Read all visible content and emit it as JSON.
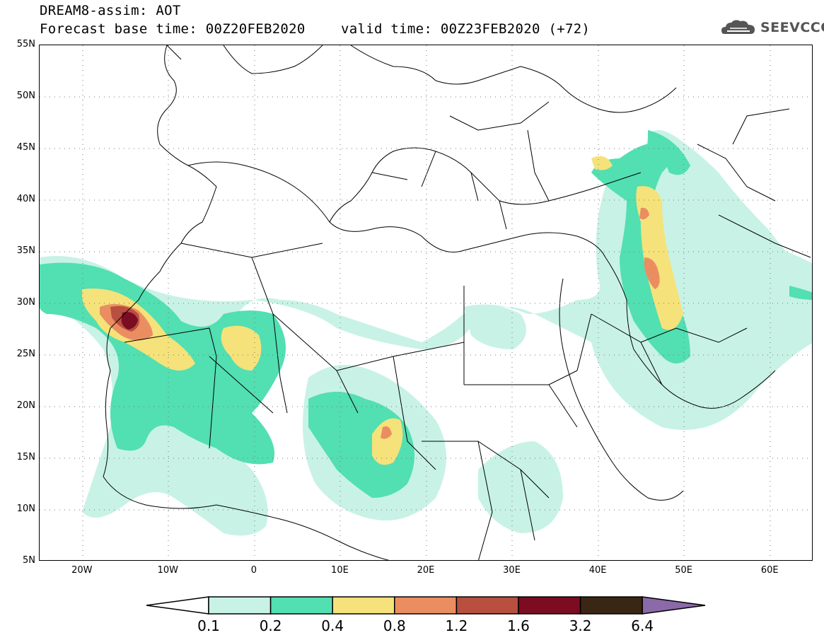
{
  "header": {
    "title": "DREAM8-assim: AOT",
    "base_time": "Forecast base time: 00Z20FEB2020",
    "valid_time": "valid time: 00Z23FEB2020 (+72)"
  },
  "logo": {
    "text": "SEEVCCC",
    "icon": "cloud-icon"
  },
  "map": {
    "lat_labels": [
      "55N",
      "50N",
      "45N",
      "40N",
      "35N",
      "30N",
      "25N",
      "20N",
      "15N",
      "10N",
      "5N"
    ],
    "lon_labels": [
      "20W",
      "10W",
      "0",
      "10E",
      "20E",
      "30E",
      "40E",
      "50E",
      "60E"
    ],
    "lat_range": [
      5,
      55
    ],
    "lon_range": [
      -25,
      65
    ],
    "grid": "dotted"
  },
  "colorbar": {
    "labels": [
      "0.1",
      "0.2",
      "0.4",
      "0.8",
      "1.2",
      "1.6",
      "3.2",
      "6.4"
    ],
    "colors": [
      "#ffffff",
      "#c8f2e6",
      "#52dfb2",
      "#f5e27a",
      "#ea8e62",
      "#b84f3f",
      "#7c0c22",
      "#3a2614",
      "#8a6aa8"
    ]
  }
}
